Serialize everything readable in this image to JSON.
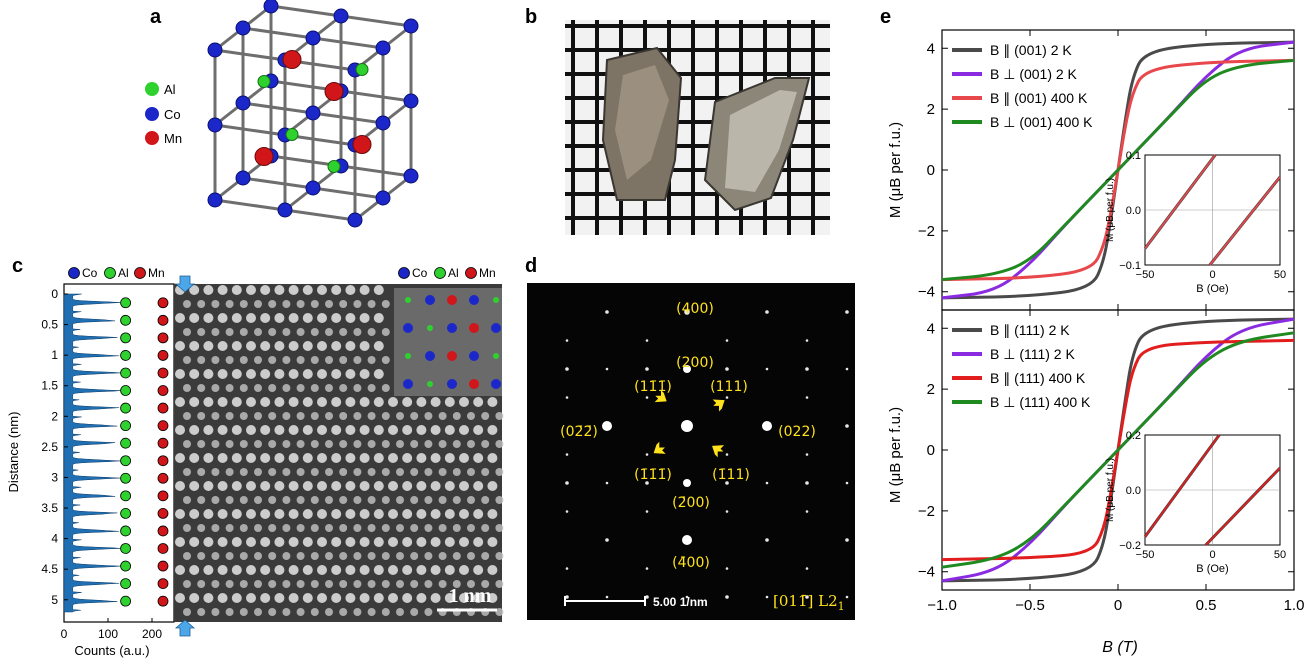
{
  "panels": {
    "a": {
      "label": "a",
      "legend": [
        {
          "text": "Al",
          "color": "#2fd12f"
        },
        {
          "text": "Co",
          "color": "#1b27c9"
        },
        {
          "text": "Mn",
          "color": "#d1161a"
        }
      ]
    },
    "b": {
      "label": "b"
    },
    "c": {
      "label": "c",
      "legend": [
        {
          "text": "Co",
          "color": "#1b27c9"
        },
        {
          "text": "Al",
          "color": "#2fd12f"
        },
        {
          "text": "Mn",
          "color": "#d1161a"
        }
      ],
      "inset_legend": [
        {
          "text": "Co",
          "color": "#1b27c9"
        },
        {
          "text": "Al",
          "color": "#2fd12f"
        },
        {
          "text": "Mn",
          "color": "#d1161a"
        }
      ],
      "ylabel": "Distance (nm)",
      "xlabel": "Counts (a.u.)",
      "yticks": [
        "0",
        "0.5",
        "1",
        "1.5",
        "2",
        "2.5",
        "3",
        "3.5",
        "4",
        "4.5",
        "5"
      ],
      "xticks": [
        "0",
        "100",
        "200"
      ],
      "scale_bar": "1 nm"
    },
    "d": {
      "label": "d",
      "spots": [
        "(400)",
        "(200)",
        "(1̅1̅̅)",
        "(111)",
        "(02̅2̅)",
        "(022)",
        "(1̅1̅1̅)",
        "(1̅11)",
        "(2̅00)",
        "(4̅00)"
      ],
      "spot_labels": {
        "s400": "(400)",
        "s200": "(200)",
        "s1m1m1": "(11̄1̄)",
        "s111": "(111)",
        "s0m2m2": "(02̄2̄)",
        "s022": "(022)",
        "sm1m1m1": "(1̄1̄1̄)",
        "sm111": "(1̄11)",
        "sm200": "(2̄00)",
        "sm400": "(4̄00)"
      },
      "scale_bar": "5.00 1/nm",
      "zone": "[011̄] L2",
      "zone_sub": "1"
    },
    "e": {
      "label": "e",
      "xlabel": "B (T)",
      "ylabel": "M (μB per f.u.)",
      "xticks": [
        "−1.0",
        "−0.5",
        "0",
        "0.5",
        "1.0"
      ],
      "yticks": [
        "4",
        "2",
        "0",
        "−2",
        "−4"
      ]
    }
  },
  "chart_data": [
    {
      "type": "line",
      "panel": "e-top",
      "xlabel": "B (T)",
      "ylabel": "M (μB per f.u.)",
      "xlim": [
        -1.0,
        1.0
      ],
      "ylim": [
        -4.6,
        4.6
      ],
      "series": [
        {
          "name": "B ∥ (001) 2 K",
          "color": "#4a4a4a",
          "x": [
            -1.0,
            -0.5,
            -0.15,
            -0.08,
            -0.04,
            0,
            0.04,
            0.08,
            0.15,
            0.5,
            1.0
          ],
          "y": [
            -4.2,
            -4.15,
            -3.9,
            -3.0,
            -1.6,
            0,
            1.6,
            3.0,
            3.9,
            4.15,
            4.2
          ]
        },
        {
          "name": "B ⊥ (001) 2 K",
          "color": "#8a2be2",
          "x": [
            -1.0,
            -0.7,
            -0.5,
            -0.3,
            0,
            0.3,
            0.5,
            0.7,
            1.0
          ],
          "y": [
            -4.2,
            -4.0,
            -3.1,
            -1.8,
            0,
            1.8,
            3.1,
            4.0,
            4.2
          ]
        },
        {
          "name": "B ∥ (001) 400 K",
          "color": "#e8474c",
          "x": [
            -1.0,
            -0.5,
            -0.15,
            -0.08,
            -0.04,
            0,
            0.04,
            0.08,
            0.15,
            0.5,
            1.0
          ],
          "y": [
            -3.6,
            -3.55,
            -3.3,
            -2.5,
            -1.4,
            0,
            1.4,
            2.5,
            3.3,
            3.55,
            3.6
          ]
        },
        {
          "name": "B ⊥ (001) 400 K",
          "color": "#1f8a1f",
          "x": [
            -1.0,
            -0.7,
            -0.5,
            -0.3,
            0,
            0.3,
            0.5,
            0.7,
            1.0
          ],
          "y": [
            -3.6,
            -3.45,
            -3.0,
            -1.8,
            0,
            1.8,
            3.0,
            3.45,
            3.6
          ]
        }
      ],
      "inset": {
        "xlabel": "B (Oe)",
        "ylabel": "M (μB per f.u.)",
        "xlim": [
          -50,
          50
        ],
        "ylim": [
          -0.1,
          0.1
        ],
        "xticks": [
          "−50",
          "0",
          "50"
        ],
        "yticks": [
          "0.1",
          "0.0",
          "−0.1"
        ],
        "lines": [
          {
            "x": [
              -50,
              2
            ],
            "y": [
              -0.07,
              0.1
            ]
          },
          {
            "x": [
              -2,
              50
            ],
            "y": [
              -0.1,
              0.06
            ]
          }
        ]
      }
    },
    {
      "type": "line",
      "panel": "e-bottom",
      "xlabel": "B (T)",
      "ylabel": "M (μB per f.u.)",
      "xlim": [
        -1.0,
        1.0
      ],
      "ylim": [
        -4.6,
        4.6
      ],
      "series": [
        {
          "name": "B ∥ (111) 2 K",
          "color": "#4a4a4a",
          "x": [
            -1.0,
            -0.5,
            -0.15,
            -0.08,
            -0.04,
            0,
            0.04,
            0.08,
            0.15,
            0.5,
            1.0
          ],
          "y": [
            -4.3,
            -4.25,
            -4.0,
            -3.1,
            -1.6,
            0,
            1.6,
            3.1,
            4.0,
            4.25,
            4.3
          ]
        },
        {
          "name": "B ⊥ (111) 2 K",
          "color": "#8a2be2",
          "x": [
            -1.0,
            -0.7,
            -0.5,
            -0.3,
            0,
            0.3,
            0.5,
            0.7,
            1.0
          ],
          "y": [
            -4.3,
            -4.0,
            -3.1,
            -1.8,
            0,
            1.8,
            3.1,
            4.0,
            4.3
          ]
        },
        {
          "name": "B ∥ (111) 400 K",
          "color": "#e11d1d",
          "x": [
            -1.0,
            -0.5,
            -0.15,
            -0.08,
            -0.04,
            0,
            0.04,
            0.08,
            0.15,
            0.5,
            1.0
          ],
          "y": [
            -3.6,
            -3.55,
            -3.4,
            -2.6,
            -1.4,
            0,
            1.4,
            2.6,
            3.4,
            3.55,
            3.6
          ]
        },
        {
          "name": "B ⊥ (111) 400 K",
          "color": "#1f8a1f",
          "x": [
            -1.0,
            -0.7,
            -0.5,
            -0.3,
            0,
            0.3,
            0.5,
            0.7,
            1.0
          ],
          "y": [
            -3.85,
            -3.6,
            -3.0,
            -1.8,
            0,
            1.8,
            3.0,
            3.6,
            3.85
          ]
        }
      ],
      "inset": {
        "xlabel": "B (Oe)",
        "ylabel": "M (μB per f.u.)",
        "xlim": [
          -50,
          50
        ],
        "ylim": [
          -0.2,
          0.2
        ],
        "xticks": [
          "−50",
          "0",
          "50"
        ],
        "yticks": [
          "0.2",
          "0.0",
          "−0.2"
        ],
        "lines": [
          {
            "x": [
              -50,
              5
            ],
            "y": [
              -0.17,
              0.2
            ]
          },
          {
            "x": [
              -5,
              50
            ],
            "y": [
              -0.2,
              0.08
            ]
          }
        ]
      }
    }
  ]
}
